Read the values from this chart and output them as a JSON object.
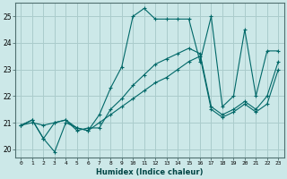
{
  "xlabel": "Humidex (Indice chaleur)",
  "ylabel": "",
  "bg_color": "#cce8e8",
  "grid_color": "#aacccc",
  "line_color": "#006868",
  "xlim": [
    -0.5,
    23.5
  ],
  "ylim": [
    19.7,
    25.5
  ],
  "xticks": [
    0,
    1,
    2,
    3,
    4,
    5,
    6,
    7,
    8,
    9,
    10,
    11,
    12,
    13,
    14,
    15,
    16,
    17,
    18,
    19,
    20,
    21,
    22,
    23
  ],
  "yticks": [
    20,
    21,
    22,
    23,
    24,
    25
  ],
  "series": [
    [
      20.9,
      21.1,
      20.4,
      19.9,
      21.0,
      20.8,
      20.7,
      21.3,
      22.3,
      23.1,
      25.0,
      25.3,
      24.9,
      24.9,
      24.9,
      24.9,
      23.3,
      25.0,
      21.6,
      22.0,
      24.5,
      22.0,
      23.7,
      23.7
    ],
    [
      20.9,
      21.1,
      20.4,
      21.0,
      21.1,
      20.7,
      20.8,
      20.8,
      21.5,
      21.9,
      22.4,
      22.8,
      23.2,
      23.4,
      23.6,
      23.8,
      23.6,
      21.6,
      21.3,
      21.5,
      21.8,
      21.5,
      22.0,
      23.3
    ],
    [
      20.9,
      21.0,
      20.9,
      21.0,
      21.1,
      20.8,
      20.7,
      21.0,
      21.3,
      21.6,
      21.9,
      22.2,
      22.5,
      22.7,
      23.0,
      23.3,
      23.5,
      21.5,
      21.2,
      21.4,
      21.7,
      21.4,
      21.7,
      23.0
    ]
  ]
}
